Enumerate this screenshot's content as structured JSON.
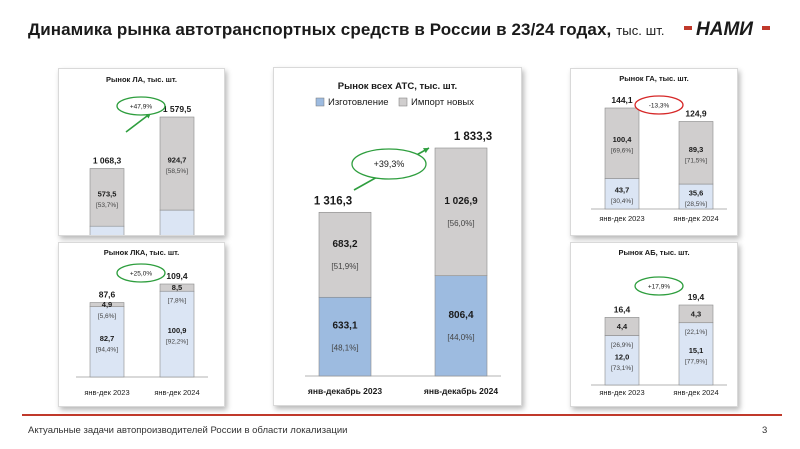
{
  "header": {
    "title": "Динамика рынка автотранспортных средств в России в 23/24 годах,",
    "title_unit": "тыс. шт.",
    "logo_text": "НАМИ",
    "brand_color": "#c0392b"
  },
  "footer": {
    "text": "Актуальные задачи автопроизводителей России в области локализации",
    "page": "3"
  },
  "colors": {
    "production": "#dbe5f4",
    "production_strong": "#9dbbe0",
    "import": "#d0cece",
    "border": "#8a8a8a"
  },
  "chart_data": [
    {
      "id": "la",
      "type": "bar",
      "title": "Рынок ЛА, тыс. шт.",
      "categories": [
        "янв-дек 2023",
        "янв-дек 2024"
      ],
      "series": [
        {
          "values": [
            494.7,
            654.8
          ],
          "labels": [
            "494,7",
            "654,8"
          ],
          "shares": [
            "[46,3%]",
            "[41,5%]"
          ]
        },
        {
          "values": [
            573.5,
            924.7
          ],
          "labels": [
            "573,5",
            "924,7"
          ],
          "shares": [
            "[53,7%]",
            "[58,5%]"
          ]
        }
      ],
      "totals": [
        1068.3,
        1579.5
      ],
      "total_labels": [
        "1 068,3",
        "1 579,5"
      ],
      "change": "+47,9%",
      "change_color": "#2e9e3e"
    },
    {
      "id": "lka",
      "type": "bar",
      "title": "Рынок ЛКА, тыс. шт.",
      "categories": [
        "янв-дек 2023",
        "янв-дек 2024"
      ],
      "series": [
        {
          "values": [
            82.7,
            100.9
          ],
          "labels": [
            "82,7",
            "100,9"
          ],
          "shares": [
            "[94,4%]",
            "[92,2%]"
          ]
        },
        {
          "values": [
            4.9,
            8.5
          ],
          "labels": [
            "4,9",
            "8,5"
          ],
          "shares": [
            "[5,6%]",
            "[7,8%]"
          ]
        }
      ],
      "totals": [
        87.6,
        109.4
      ],
      "total_labels": [
        "87,6",
        "109,4"
      ],
      "change": "+25,0%",
      "change_color": "#2e9e3e"
    },
    {
      "id": "ats",
      "type": "bar",
      "title": "Рынок всех АТС, тыс. шт.",
      "legend": [
        "Изготовление",
        "Импорт новых"
      ],
      "categories": [
        "янв-декабрь 2023",
        "янв-декабрь 2024"
      ],
      "series": [
        {
          "name": "Изготовление",
          "values": [
            633.1,
            806.4
          ],
          "labels": [
            "633,1",
            "806,4"
          ],
          "shares": [
            "[48,1%]",
            "[44,0%]"
          ]
        },
        {
          "name": "Импорт новых",
          "values": [
            683.2,
            1026.9
          ],
          "labels": [
            "683,2",
            "1 026,9"
          ],
          "shares": [
            "[51,9%]",
            "[56,0%]"
          ]
        }
      ],
      "totals": [
        1316.3,
        1833.3
      ],
      "total_labels": [
        "1 316,3",
        "1 833,3"
      ],
      "change": "+39,3%",
      "change_color": "#2e9e3e"
    },
    {
      "id": "ga",
      "type": "bar",
      "title": "Рынок ГА, тыс. шт.",
      "categories": [
        "янв-дек 2023",
        "янв-дек 2024"
      ],
      "series": [
        {
          "values": [
            43.7,
            35.6
          ],
          "labels": [
            "43,7",
            "35,6"
          ],
          "shares": [
            "[30,4%]",
            "[28,5%]"
          ]
        },
        {
          "values": [
            100.4,
            89.3
          ],
          "labels": [
            "100,4",
            "89,3"
          ],
          "shares": [
            "[69,6%]",
            "[71,5%]"
          ]
        }
      ],
      "totals": [
        144.1,
        124.9
      ],
      "total_labels": [
        "144,1",
        "124,9"
      ],
      "change": "-13,3%",
      "change_color": "#d62828"
    },
    {
      "id": "ab",
      "type": "bar",
      "title": "Рынок АБ, тыс. шт.",
      "categories": [
        "янв-дек  2023",
        "янв-дек 2024"
      ],
      "series": [
        {
          "values": [
            12.0,
            15.1
          ],
          "labels": [
            "12,0",
            "15,1"
          ],
          "shares": [
            "[73,1%]",
            "[77,9%]"
          ]
        },
        {
          "values": [
            4.4,
            4.3
          ],
          "labels": [
            "4,4",
            "4,3"
          ],
          "shares": [
            "[26,9%]",
            "[22,1%]"
          ]
        }
      ],
      "totals": [
        16.4,
        19.4
      ],
      "total_labels": [
        "16,4",
        "19,4"
      ],
      "change": "+17,9%",
      "change_color": "#2e9e3e"
    }
  ]
}
